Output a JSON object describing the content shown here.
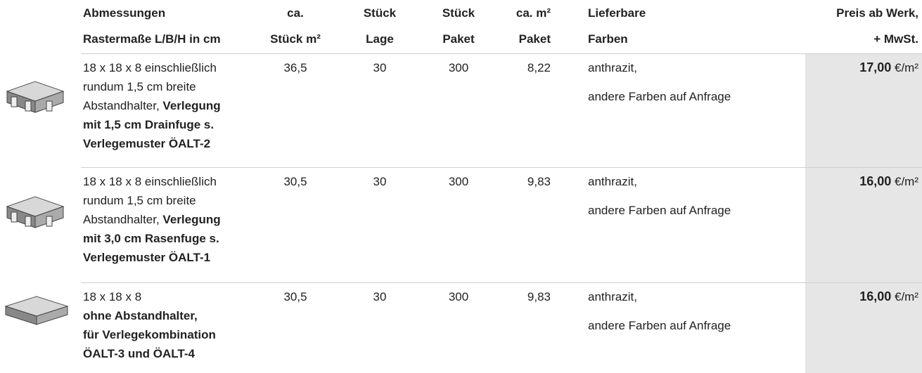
{
  "table": {
    "headers": [
      [
        "Abmessungen",
        "Rastermaße L/B/H in cm"
      ],
      [
        "ca.",
        "Stück m²"
      ],
      [
        "Stück",
        "Lage"
      ],
      [
        "Stück",
        "Paket"
      ],
      [
        "ca. m²",
        "Paket"
      ],
      [
        "Lieferbare",
        "Farben"
      ],
      [
        "Preis ab Werk,",
        "+ MwSt."
      ]
    ],
    "rows": [
      {
        "description": [
          [
            {
              "text": "18 x 18 x 8 einschließlich",
              "bold": false
            }
          ],
          [
            {
              "text": "rundum 1,5 cm breite",
              "bold": false
            }
          ],
          [
            {
              "text": "Abstandhalter, ",
              "bold": false
            },
            {
              "text": "Verlegung",
              "bold": true
            }
          ],
          [
            {
              "text": "mit 1,5 cm Drainfuge s.",
              "bold": true
            }
          ],
          [
            {
              "text": "Verlegemuster ÖALT-2",
              "bold": true
            }
          ]
        ],
        "pieces_per_m2": "36,5",
        "pieces_per_layer": "30",
        "pieces_per_package": "300",
        "m2_per_package": "8,22",
        "colors": [
          "anthrazit,",
          "andere Farben auf Anfrage"
        ],
        "price": {
          "amount": "17,00",
          "unit": "€/m²"
        }
      },
      {
        "description": [
          [
            {
              "text": "18 x 18 x 8 einschließlich",
              "bold": false
            }
          ],
          [
            {
              "text": "rundum 1,5 cm breite",
              "bold": false
            }
          ],
          [
            {
              "text": "Abstandhalter, ",
              "bold": false
            },
            {
              "text": "Verlegung",
              "bold": true
            }
          ],
          [
            {
              "text": "mit 3,0 cm Rasenfuge s.",
              "bold": true
            }
          ],
          [
            {
              "text": "Verlegemuster ÖALT-1",
              "bold": true
            }
          ]
        ],
        "pieces_per_m2": "30,5",
        "pieces_per_layer": "30",
        "pieces_per_package": "300",
        "m2_per_package": "9,83",
        "colors": [
          "anthrazit,",
          "andere Farben auf Anfrage"
        ],
        "price": {
          "amount": "16,00",
          "unit": "€/m²"
        }
      },
      {
        "description": [
          [
            {
              "text": "18 x 18 x 8",
              "bold": false
            }
          ],
          [
            {
              "text": "ohne Abstandhalter,",
              "bold": true
            }
          ],
          [
            {
              "text": "für Verlegekombination",
              "bold": true
            }
          ],
          [
            {
              "text": "ÖALT-3 und ÖALT-4",
              "bold": true
            }
          ]
        ],
        "pieces_per_m2": "30,5",
        "pieces_per_layer": "30",
        "pieces_per_package": "300",
        "m2_per_package": "9,83",
        "colors": [
          "anthrazit,",
          "andere Farben auf Anfrage"
        ],
        "price": {
          "amount": "16,00",
          "unit": "€/m²"
        }
      }
    ]
  }
}
